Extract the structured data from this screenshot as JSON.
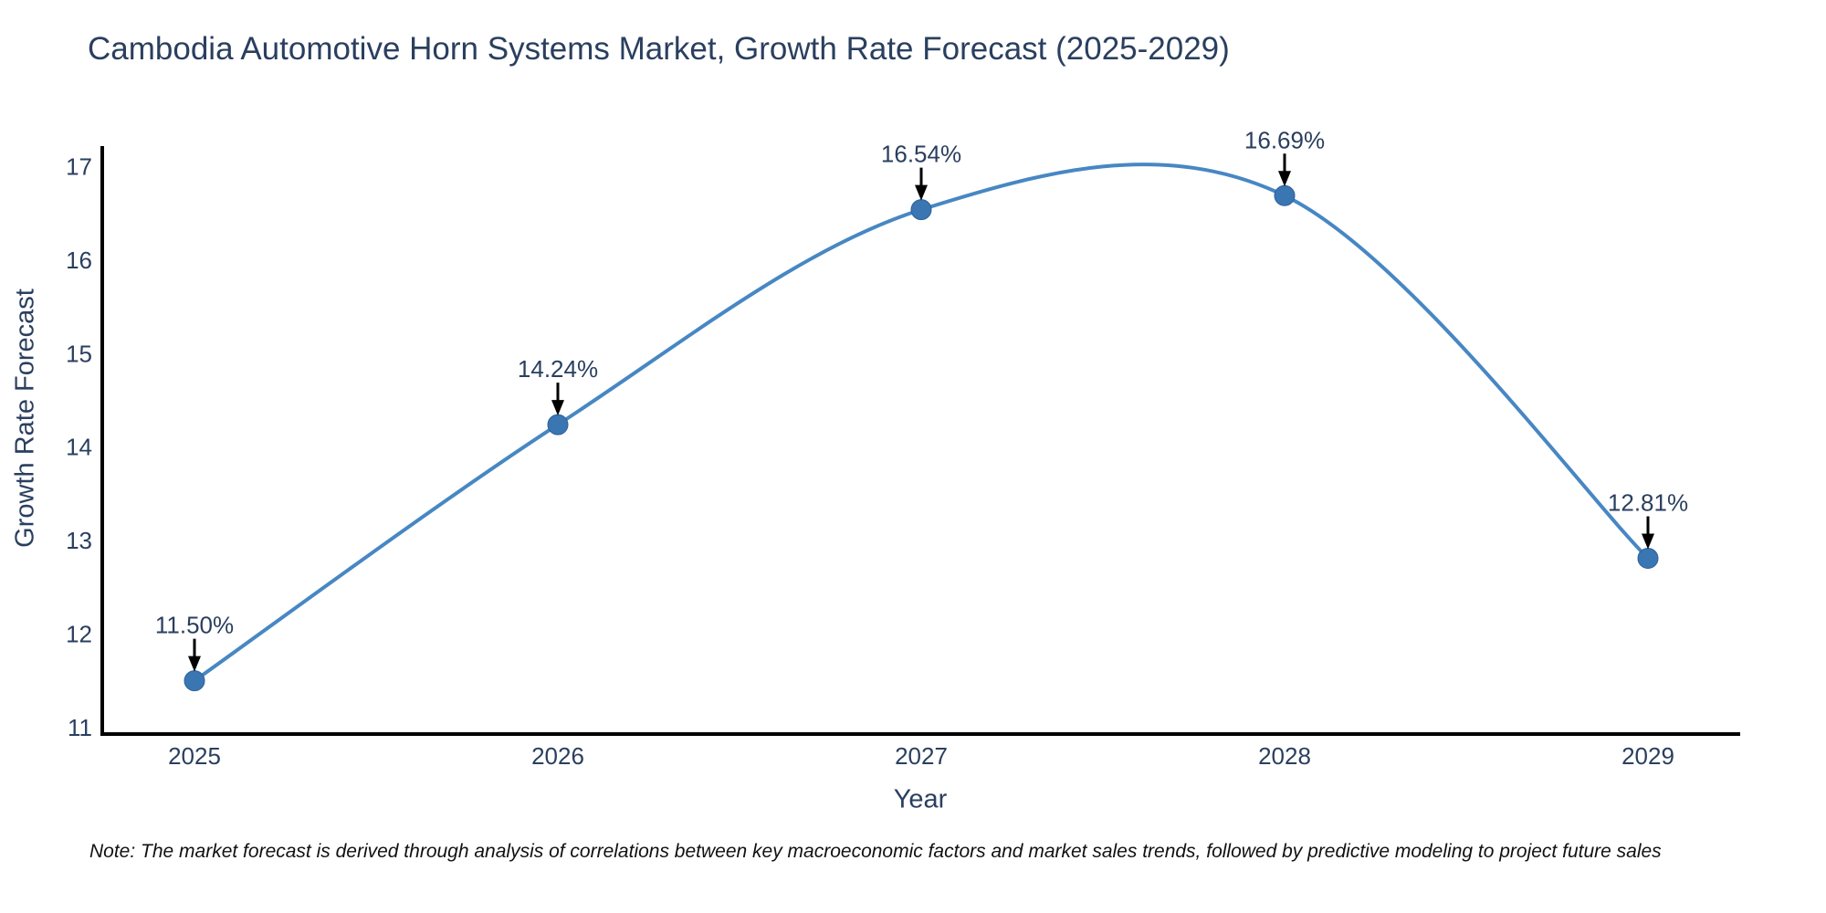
{
  "note": "Note: The market forecast is derived through analysis of correlations between key macroeconomic factors and market sales trends, followed by predictive modeling to project future sales",
  "chart_data": {
    "type": "line",
    "title": "Cambodia Automotive Horn Systems Market, Growth Rate Forecast (2025-2029)",
    "xlabel": "Year",
    "ylabel": "Growth Rate Forecast",
    "x": [
      2025,
      2026,
      2027,
      2028,
      2029
    ],
    "series": [
      {
        "name": "Growth Rate Forecast",
        "values": [
          11.5,
          14.24,
          16.54,
          16.69,
          12.81
        ]
      }
    ],
    "point_labels": [
      "11.50%",
      "14.24%",
      "16.54%",
      "16.69%",
      "12.81%"
    ],
    "yticks": [
      11,
      12,
      13,
      14,
      15,
      16,
      17
    ],
    "ylim": [
      10.93,
      17.22
    ],
    "line_shape": "spline",
    "grid": false,
    "legend_position": "none",
    "annotations_have_arrows": true,
    "colors": {
      "background": "#ffffff",
      "line": "#4787c3",
      "marker": "#3a76b2",
      "marker_edge": "#2e6099",
      "axis_line": "#000000",
      "text": "#2a3f5f",
      "annotation_text": "#2a3f5f",
      "annotation_arrow": "#000000",
      "note_text": "#111111"
    }
  }
}
